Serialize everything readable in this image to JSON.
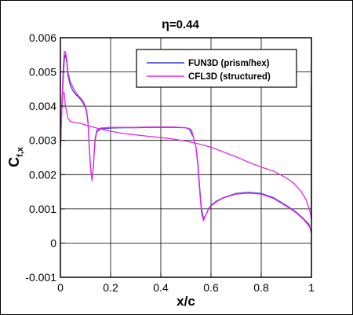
{
  "chart_data": {
    "type": "line",
    "title_symbol": "η",
    "title_value": "=0.44",
    "xlabel": "x/c",
    "ylabel_main": "C",
    "ylabel_sub": "f,x",
    "xlim": [
      0,
      1
    ],
    "ylim": [
      -0.001,
      0.006
    ],
    "x_ticks": [
      0,
      0.2,
      0.4,
      0.6,
      0.8,
      1
    ],
    "x_tick_labels": [
      "0",
      "0.2",
      "0.4",
      "0.6",
      "0.8",
      "1"
    ],
    "y_ticks": [
      -0.001,
      0,
      0.001,
      0.002,
      0.003,
      0.004,
      0.005,
      0.006
    ],
    "y_tick_labels": [
      "-0.001",
      "0",
      "0.001",
      "0.002",
      "0.003",
      "0.004",
      "0.005",
      "0.006"
    ],
    "grid": true,
    "legend_position": "top-right",
    "series": [
      {
        "name": "FUN3D (prism/hex)",
        "color": "#3a3ad8",
        "segments": [
          [
            [
              0.001,
              0.0028
            ],
            [
              0.004,
              0.0036
            ],
            [
              0.008,
              0.0043
            ],
            [
              0.012,
              0.0049
            ],
            [
              0.016,
              0.0054
            ],
            [
              0.02,
              0.0055
            ],
            [
              0.025,
              0.0053
            ],
            [
              0.03,
              0.0049
            ],
            [
              0.04,
              0.0046
            ],
            [
              0.05,
              0.00445
            ],
            [
              0.06,
              0.00435
            ],
            [
              0.07,
              0.00428
            ],
            [
              0.08,
              0.0042
            ],
            [
              0.09,
              0.0041
            ],
            [
              0.1,
              0.00395
            ],
            [
              0.105,
              0.0038
            ],
            [
              0.11,
              0.0035
            ],
            [
              0.115,
              0.0028
            ],
            [
              0.12,
              0.0022
            ],
            [
              0.126,
              0.00185
            ],
            [
              0.131,
              0.0022
            ],
            [
              0.138,
              0.003
            ],
            [
              0.145,
              0.00325
            ],
            [
              0.16,
              0.00333
            ],
            [
              0.2,
              0.00336
            ],
            [
              0.25,
              0.00337
            ],
            [
              0.3,
              0.00337
            ],
            [
              0.35,
              0.00338
            ],
            [
              0.4,
              0.00338
            ],
            [
              0.45,
              0.00338
            ],
            [
              0.5,
              0.00337
            ],
            [
              0.515,
              0.00332
            ],
            [
              0.522,
              0.0032
            ],
            [
              0.53,
              0.0031
            ],
            [
              0.54,
              0.0028
            ],
            [
              0.548,
              0.0023
            ],
            [
              0.555,
              0.0016
            ],
            [
              0.562,
              0.001
            ],
            [
              0.57,
              0.00072
            ],
            [
              0.578,
              0.0008
            ],
            [
              0.59,
              0.001
            ],
            [
              0.6,
              0.0011
            ],
            [
              0.62,
              0.00122
            ],
            [
              0.65,
              0.00133
            ],
            [
              0.7,
              0.00145
            ],
            [
              0.75,
              0.00148
            ],
            [
              0.8,
              0.00145
            ],
            [
              0.85,
              0.00132
            ],
            [
              0.9,
              0.0011
            ],
            [
              0.94,
              0.0009
            ],
            [
              0.97,
              0.0007
            ],
            [
              0.99,
              0.00055
            ],
            [
              1.0,
              0.0003
            ]
          ]
        ]
      },
      {
        "name": "CFL3D (structured)",
        "color": "#e22ae2",
        "segments": [
          [
            [
              0.001,
              0.003
            ],
            [
              0.005,
              0.0038
            ],
            [
              0.01,
              0.0044
            ],
            [
              0.015,
              0.0044
            ],
            [
              0.02,
              0.004
            ],
            [
              0.03,
              0.00365
            ],
            [
              0.04,
              0.00355
            ],
            [
              0.06,
              0.00352
            ],
            [
              0.08,
              0.0035
            ],
            [
              0.1,
              0.00345
            ],
            [
              0.15,
              0.00335
            ],
            [
              0.2,
              0.00327
            ],
            [
              0.25,
              0.0032
            ],
            [
              0.3,
              0.00316
            ],
            [
              0.35,
              0.00312
            ],
            [
              0.4,
              0.00308
            ],
            [
              0.45,
              0.00304
            ],
            [
              0.5,
              0.00298
            ],
            [
              0.55,
              0.0029
            ],
            [
              0.6,
              0.0028
            ],
            [
              0.65,
              0.00266
            ],
            [
              0.7,
              0.00252
            ],
            [
              0.75,
              0.00236
            ],
            [
              0.8,
              0.00222
            ],
            [
              0.85,
              0.0021
            ],
            [
              0.9,
              0.0019
            ],
            [
              0.93,
              0.00175
            ],
            [
              0.96,
              0.0015
            ],
            [
              0.98,
              0.00125
            ],
            [
              0.995,
              0.0009
            ],
            [
              1.0,
              0.0007
            ]
          ],
          [
            [
              0.001,
              0.0029
            ],
            [
              0.004,
              0.0038
            ],
            [
              0.008,
              0.0045
            ],
            [
              0.012,
              0.0052
            ],
            [
              0.016,
              0.0056
            ],
            [
              0.02,
              0.00558
            ],
            [
              0.025,
              0.0054
            ],
            [
              0.03,
              0.005
            ],
            [
              0.04,
              0.0047
            ],
            [
              0.05,
              0.00455
            ],
            [
              0.06,
              0.00442
            ],
            [
              0.07,
              0.00432
            ],
            [
              0.08,
              0.00424
            ],
            [
              0.09,
              0.00415
            ],
            [
              0.1,
              0.004
            ],
            [
              0.105,
              0.00385
            ],
            [
              0.11,
              0.00355
            ],
            [
              0.115,
              0.00285
            ],
            [
              0.12,
              0.0022
            ],
            [
              0.126,
              0.00182
            ],
            [
              0.131,
              0.0022
            ],
            [
              0.138,
              0.00305
            ],
            [
              0.145,
              0.0033
            ],
            [
              0.16,
              0.00336
            ],
            [
              0.2,
              0.00338
            ],
            [
              0.25,
              0.00338
            ],
            [
              0.3,
              0.00338
            ],
            [
              0.35,
              0.00339
            ],
            [
              0.4,
              0.00339
            ],
            [
              0.45,
              0.00339
            ],
            [
              0.5,
              0.00337
            ],
            [
              0.515,
              0.00334
            ],
            [
              0.522,
              0.0033
            ],
            [
              0.53,
              0.0031
            ],
            [
              0.54,
              0.0028
            ],
            [
              0.548,
              0.0022
            ],
            [
              0.555,
              0.0015
            ],
            [
              0.562,
              0.0009
            ],
            [
              0.57,
              0.00065
            ],
            [
              0.578,
              0.0008
            ],
            [
              0.59,
              0.00098
            ],
            [
              0.6,
              0.00108
            ],
            [
              0.62,
              0.0012
            ],
            [
              0.65,
              0.00132
            ],
            [
              0.7,
              0.00143
            ],
            [
              0.75,
              0.00146
            ],
            [
              0.8,
              0.00143
            ],
            [
              0.85,
              0.0013
            ],
            [
              0.9,
              0.00108
            ],
            [
              0.94,
              0.00088
            ],
            [
              0.97,
              0.00068
            ],
            [
              0.99,
              0.0005
            ],
            [
              1.0,
              0.00035
            ]
          ],
          [
            [
              1.0,
              0.0007
            ],
            [
              1.0,
              0.0046
            ]
          ]
        ]
      }
    ]
  }
}
